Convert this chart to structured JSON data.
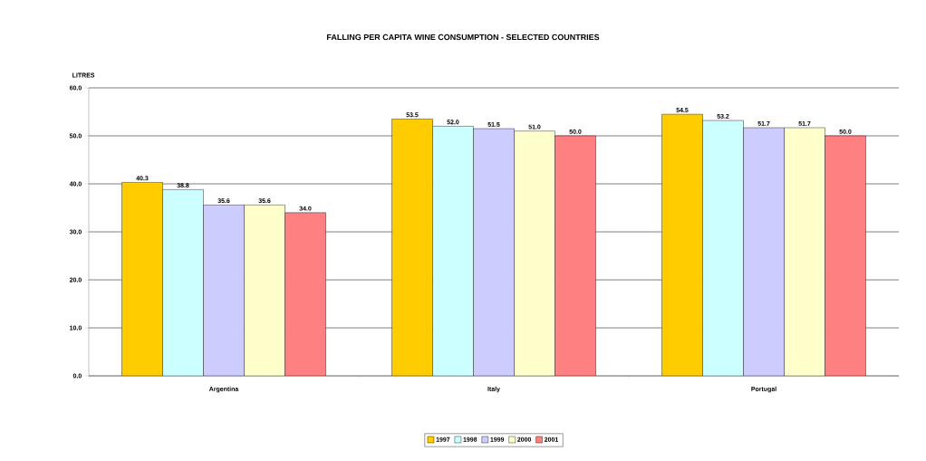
{
  "chart_data": {
    "type": "bar",
    "title": "FALLING PER CAPITA WINE CONSUMPTION - SELECTED COUNTRIES",
    "ylabel": "LITRES",
    "categories": [
      "Argentina",
      "Italy",
      "Portugal"
    ],
    "series": [
      {
        "name": "1997",
        "color": "#ffcc00",
        "values": [
          40.3,
          53.5,
          54.5
        ],
        "value_labels": [
          "40.3",
          "53.5",
          "54.5"
        ]
      },
      {
        "name": "1998",
        "color": "#ccffff",
        "values": [
          38.8,
          52.0,
          53.2
        ],
        "value_labels": [
          "38.8",
          "52.0",
          "53.2"
        ]
      },
      {
        "name": "1999",
        "color": "#ccccff",
        "values": [
          35.6,
          51.5,
          51.7
        ],
        "value_labels": [
          "35.6",
          "51.5",
          "51.7"
        ]
      },
      {
        "name": "2000",
        "color": "#ffffcc",
        "values": [
          35.6,
          51.0,
          51.7
        ],
        "value_labels": [
          "35.6",
          "51.0",
          "51.7"
        ]
      },
      {
        "name": "2001",
        "color": "#ff8080",
        "values": [
          34.0,
          50.0,
          50.0
        ],
        "value_labels": [
          "34.0",
          "50.0",
          "50.0"
        ]
      }
    ],
    "ylim": [
      0,
      60
    ],
    "yticks": [
      {
        "value": 0,
        "label": "0.0"
      },
      {
        "value": 10,
        "label": "10.0"
      },
      {
        "value": 20,
        "label": "20.0"
      },
      {
        "value": 30,
        "label": "30.0"
      },
      {
        "value": 40,
        "label": "40.0"
      },
      {
        "value": 50,
        "label": "50.0"
      },
      {
        "value": 60,
        "label": "60.0"
      }
    ],
    "grid": "y",
    "legend": "bottom"
  }
}
